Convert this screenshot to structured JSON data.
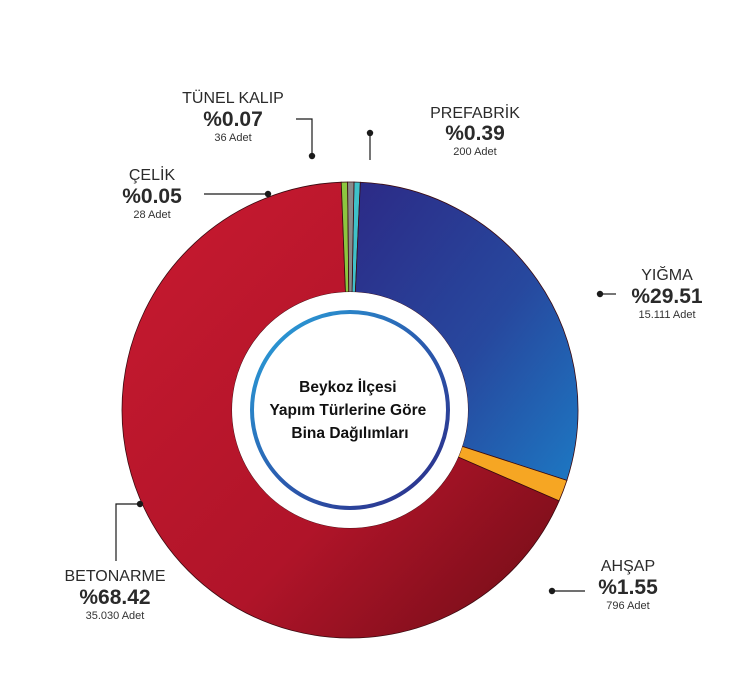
{
  "chart_data": {
    "type": "pie",
    "title_lines": [
      "Beykoz İlçesi",
      "Yapım Türlerine Göre",
      "Bina Dağılımları"
    ],
    "slices": [
      {
        "name": "PREFABRİK",
        "percent_label": "%0.39",
        "count_label": "200 Adet",
        "value": 0.39,
        "count": 200,
        "color": "#3fc1c9"
      },
      {
        "name": "YIĞMA",
        "percent_label": "%29.51",
        "count_label": "15.111 Adet",
        "value": 29.51,
        "count": 15111,
        "color": "#2b5aa8"
      },
      {
        "name": "AHŞAP",
        "percent_label": "%1.55",
        "count_label": "796 Adet",
        "value": 1.55,
        "count": 796,
        "color": "#f6a623"
      },
      {
        "name": "BETONARME",
        "percent_label": "%68.42",
        "count_label": "35.030 Adet",
        "value": 68.42,
        "count": 35030,
        "color": "#c0172b"
      },
      {
        "name": "ÇELİK",
        "percent_label": "%0.05",
        "count_label": "28 Adet",
        "value": 0.05,
        "count": 28,
        "color": "#8cc63f"
      },
      {
        "name": "TÜNEL KALIP",
        "percent_label": "%0.07",
        "count_label": "36 Adet",
        "value": 0.07,
        "count": 36,
        "color": "#8a8a8a"
      }
    ]
  }
}
